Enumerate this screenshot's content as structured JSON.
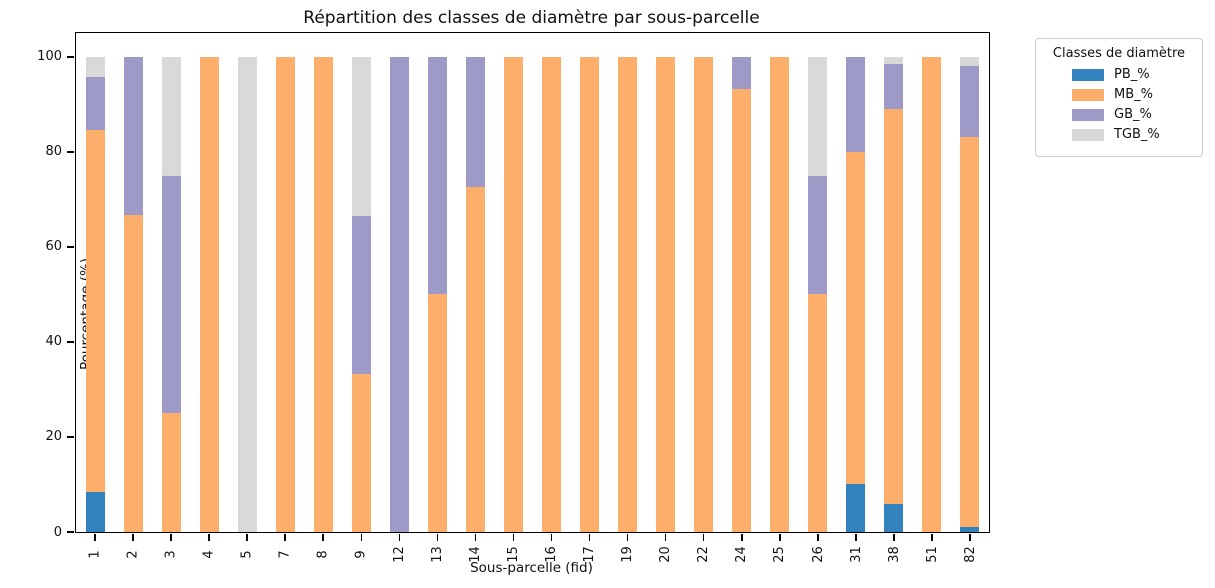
{
  "chart_data": {
    "type": "bar",
    "stacked": true,
    "title": "Répartition des classes de diamètre par sous-parcelle",
    "xlabel": "Sous-parcelle (fid)",
    "ylabel": "Pourcentage (%)",
    "ylim": [
      0,
      105
    ],
    "yticks": [
      0,
      20,
      40,
      60,
      80,
      100
    ],
    "grid": false,
    "legend": {
      "title": "Classes de diamètre",
      "position": "upper-right-outside"
    },
    "categories": [
      "1",
      "2",
      "3",
      "4",
      "5",
      "7",
      "8",
      "9",
      "12",
      "13",
      "14",
      "15",
      "16",
      "17",
      "19",
      "20",
      "22",
      "24",
      "25",
      "26",
      "31",
      "38",
      "51",
      "82"
    ],
    "series": [
      {
        "name": "PB_%",
        "color": "#3182bd",
        "values": [
          8.5,
          0,
          0,
          0,
          0,
          0,
          0,
          0,
          0,
          0,
          0,
          0,
          0,
          0,
          0,
          0,
          0,
          0,
          0,
          0,
          10,
          6,
          0,
          1
        ]
      },
      {
        "name": "MB_%",
        "color": "#fdae6b",
        "values": [
          76.1,
          66.7,
          25,
          100,
          0,
          100,
          100,
          33.3,
          0,
          50,
          72.7,
          100,
          100,
          100,
          100,
          100,
          100,
          93.3,
          100,
          50,
          70,
          83,
          100,
          82.2
        ]
      },
      {
        "name": "GB_%",
        "color": "#9e9ac8",
        "values": [
          11.2,
          33.3,
          50,
          0,
          0,
          0,
          0,
          33.3,
          100,
          50,
          27.3,
          0,
          0,
          0,
          0,
          0,
          0,
          6.7,
          0,
          25,
          20,
          9.5,
          0,
          14.8
        ]
      },
      {
        "name": "TGB_%",
        "color": "#d9d9d9",
        "values": [
          4.2,
          0,
          25,
          0,
          100,
          0,
          0,
          33.4,
          0,
          0,
          0,
          0,
          0,
          0,
          0,
          0,
          0,
          0,
          0,
          25,
          0,
          1.5,
          0,
          2
        ]
      }
    ]
  }
}
